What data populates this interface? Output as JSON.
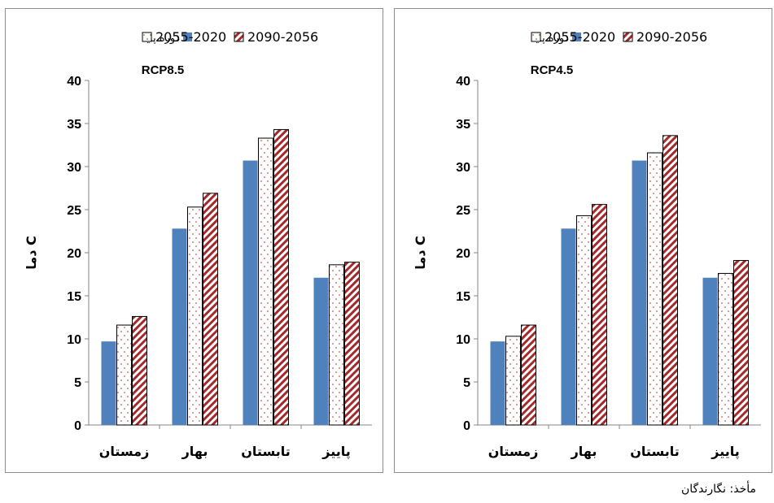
{
  "legend": {
    "items": [
      {
        "label": "دوره پایه",
        "style": "solid"
      },
      {
        "label": "2055-2020",
        "style": "dots"
      },
      {
        "label": "2090-2056",
        "style": "hatch"
      }
    ]
  },
  "colors": {
    "base": "#4f81bd",
    "hatch": "#a5292a",
    "dots": "#a5292a",
    "axis": "#868686",
    "border": "#000000"
  },
  "source": "مأخذ: نگارندگان",
  "chart_data": [
    {
      "type": "bar",
      "title": "RCP8.5",
      "ylabel": "دما C",
      "ylim": [
        0,
        40
      ],
      "yticks": [
        0,
        5,
        10,
        15,
        20,
        25,
        30,
        35,
        40
      ],
      "categories": [
        "زمستان",
        "بهار",
        "تابستان",
        "پاییز"
      ],
      "series": [
        {
          "name": "دوره پایه",
          "values": [
            9.7,
            22.8,
            30.7,
            17.1
          ]
        },
        {
          "name": "2055-2020",
          "values": [
            11.6,
            25.3,
            33.3,
            18.6
          ]
        },
        {
          "name": "2090-2056",
          "values": [
            12.6,
            26.9,
            34.3,
            18.9
          ]
        }
      ]
    },
    {
      "type": "bar",
      "title": "RCP4.5",
      "ylabel": "دما C",
      "ylim": [
        0,
        40
      ],
      "yticks": [
        0,
        5,
        10,
        15,
        20,
        25,
        30,
        35,
        40
      ],
      "categories": [
        "زمستان",
        "بهار",
        "تابستان",
        "پاییز"
      ],
      "series": [
        {
          "name": "دوره پایه",
          "values": [
            9.7,
            22.8,
            30.7,
            17.1
          ]
        },
        {
          "name": "2055-2020",
          "values": [
            10.3,
            24.3,
            31.6,
            17.6
          ]
        },
        {
          "name": "2090-2056",
          "values": [
            11.6,
            25.6,
            33.6,
            19.1
          ]
        }
      ]
    }
  ]
}
